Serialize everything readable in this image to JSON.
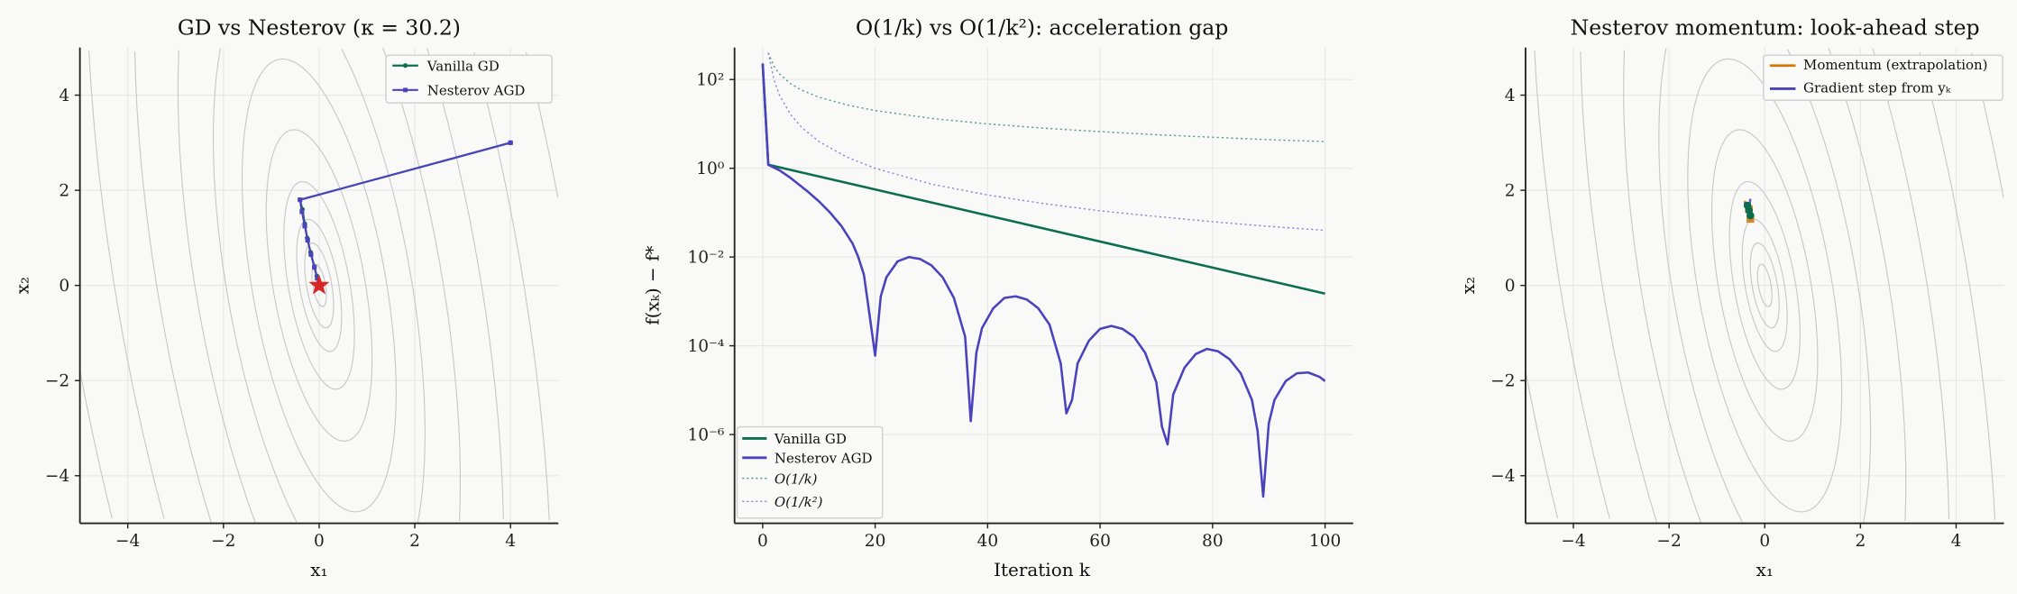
{
  "colors": {
    "gd": "#0b6e4f",
    "nesterov": "#4b43bd",
    "momentum": "#d97706",
    "star": "#d62728",
    "contour": "#c8c8c8"
  },
  "chart_data": [
    {
      "type": "line",
      "title": "GD vs Nesterov (κ = 30.2)",
      "xlabel": "x₁",
      "ylabel": "x₂",
      "xlim": [
        -5,
        5
      ],
      "ylim": [
        -5,
        5
      ],
      "xticks": [
        "−4",
        "−2",
        "0",
        "2",
        "4"
      ],
      "xtick_values": [
        -4,
        -2,
        0,
        2,
        4
      ],
      "yticks": [
        "−4",
        "−2",
        "0",
        "2",
        "4"
      ],
      "ytick_values": [
        -4,
        -2,
        0,
        2,
        4
      ],
      "grid": true,
      "legend": "top-right",
      "condition_number": 30.2,
      "series": [
        {
          "name": "Vanilla GD",
          "color": "#0b6e4f",
          "marker": "circle",
          "points": [
            [
              4,
              3
            ],
            [
              -0.4,
              1.8
            ],
            [
              -0.35,
              1.6
            ],
            [
              -0.3,
              1.3
            ],
            [
              -0.25,
              1.0
            ],
            [
              -0.18,
              0.7
            ],
            [
              -0.1,
              0.4
            ],
            [
              -0.05,
              0.2
            ],
            [
              0,
              0
            ]
          ]
        },
        {
          "name": "Nesterov AGD",
          "color": "#4b43bd",
          "marker": "square",
          "points": [
            [
              4,
              3
            ],
            [
              -0.4,
              1.8
            ],
            [
              -0.36,
              1.55
            ],
            [
              -0.3,
              1.25
            ],
            [
              -0.24,
              0.95
            ],
            [
              -0.17,
              0.65
            ],
            [
              -0.1,
              0.38
            ],
            [
              -0.04,
              0.15
            ],
            [
              0.02,
              -0.05
            ],
            [
              0,
              0
            ]
          ]
        }
      ],
      "optimum": [
        0,
        0
      ]
    },
    {
      "type": "line",
      "title": "O(1/k) vs O(1/k²): acceleration gap",
      "xlabel": "Iteration k",
      "ylabel": "f(xₖ) − f*",
      "xlim": [
        -5,
        105
      ],
      "ylim_log10": [
        -8,
        2.72
      ],
      "yscale": "log",
      "xticks": [
        "0",
        "20",
        "40",
        "60",
        "80",
        "100"
      ],
      "xtick_values": [
        0,
        20,
        40,
        60,
        80,
        100
      ],
      "yticks": [
        "10²",
        "10⁰",
        "10⁻²",
        "10⁻⁴",
        "10⁻⁶"
      ],
      "ytick_values": [
        2,
        0,
        -2,
        -4,
        -6
      ],
      "grid": true,
      "legend": "bottom-left",
      "series": [
        {
          "name": "Vanilla GD",
          "color": "#0b6e4f",
          "style": "solid",
          "points": [
            [
              0,
              230
            ],
            [
              1,
              1.2
            ],
            [
              100,
              0.0015
            ]
          ]
        },
        {
          "name": "Nesterov AGD",
          "color": "#4b43bd",
          "style": "solid",
          "points": [
            [
              0,
              230
            ],
            [
              1,
              1.2
            ],
            [
              3,
              0.9
            ],
            [
              5,
              0.6
            ],
            [
              8,
              0.3
            ],
            [
              10,
              0.18
            ],
            [
              12,
              0.1
            ],
            [
              14,
              0.05
            ],
            [
              16,
              0.02
            ],
            [
              17,
              0.01
            ],
            [
              18,
              0.004
            ],
            [
              19,
              0.0005
            ],
            [
              20,
              6e-05
            ],
            [
              21,
              0.0013
            ],
            [
              22,
              0.0035
            ],
            [
              24,
              0.008
            ],
            [
              26,
              0.01
            ],
            [
              28,
              0.009
            ],
            [
              30,
              0.0065
            ],
            [
              32,
              0.0035
            ],
            [
              34,
              0.0012
            ],
            [
              36,
              0.00016
            ],
            [
              37,
              2e-06
            ],
            [
              38,
              7e-05
            ],
            [
              39,
              0.00025
            ],
            [
              41,
              0.0007
            ],
            [
              43,
              0.0012
            ],
            [
              45,
              0.0013
            ],
            [
              47,
              0.0011
            ],
            [
              49,
              0.0007
            ],
            [
              51,
              0.0003
            ],
            [
              53,
              4e-05
            ],
            [
              54,
              3e-06
            ],
            [
              55,
              6e-06
            ],
            [
              56,
              4e-05
            ],
            [
              58,
              0.00013
            ],
            [
              60,
              0.00024
            ],
            [
              62,
              0.00028
            ],
            [
              64,
              0.00024
            ],
            [
              66,
              0.00016
            ],
            [
              68,
              7e-05
            ],
            [
              70,
              1.5e-05
            ],
            [
              71,
              1.5e-06
            ],
            [
              72,
              6e-07
            ],
            [
              73,
              8e-06
            ],
            [
              75,
              3.2e-05
            ],
            [
              77,
              6.5e-05
            ],
            [
              79,
              8.5e-05
            ],
            [
              81,
              7.5e-05
            ],
            [
              83,
              5e-05
            ],
            [
              85,
              2.4e-05
            ],
            [
              87,
              6e-06
            ],
            [
              88,
              1.2e-06
            ],
            [
              89,
              4e-08
            ],
            [
              90,
              1.8e-06
            ],
            [
              91,
              6e-06
            ],
            [
              93,
              1.6e-05
            ],
            [
              95,
              2.4e-05
            ],
            [
              97,
              2.5e-05
            ],
            [
              99,
              2e-05
            ],
            [
              100,
              1.6e-05
            ]
          ]
        },
        {
          "name": "O(1/k)",
          "color": "#5a9e7a",
          "style": "dotted",
          "points": [
            [
              1,
              400
            ],
            [
              2,
              200
            ],
            [
              3,
              133
            ],
            [
              5,
              80
            ],
            [
              7,
              57
            ],
            [
              10,
              40
            ],
            [
              15,
              26.7
            ],
            [
              20,
              20
            ],
            [
              30,
              13.3
            ],
            [
              40,
              10
            ],
            [
              50,
              8
            ],
            [
              60,
              6.7
            ],
            [
              70,
              5.7
            ],
            [
              80,
              5
            ],
            [
              90,
              4.4
            ],
            [
              100,
              4
            ]
          ]
        },
        {
          "name": "O(1/k²)",
          "color": "#8a84dc",
          "style": "dotted",
          "points": [
            [
              1,
              400
            ],
            [
              2,
              100
            ],
            [
              3,
              44
            ],
            [
              5,
              16
            ],
            [
              7,
              8.2
            ],
            [
              10,
              4
            ],
            [
              15,
              1.78
            ],
            [
              20,
              1
            ],
            [
              30,
              0.44
            ],
            [
              40,
              0.25
            ],
            [
              50,
              0.16
            ],
            [
              60,
              0.11
            ],
            [
              70,
              0.082
            ],
            [
              80,
              0.0625
            ],
            [
              90,
              0.049
            ],
            [
              100,
              0.04
            ]
          ]
        }
      ]
    },
    {
      "type": "scatter",
      "title": "Nesterov momentum: look-ahead step",
      "xlabel": "x₁",
      "ylabel": "x₂",
      "xlim": [
        -5,
        5
      ],
      "ylim": [
        -5,
        5
      ],
      "xticks": [
        "−4",
        "−2",
        "0",
        "2",
        "4"
      ],
      "xtick_values": [
        -4,
        -2,
        0,
        2,
        4
      ],
      "yticks": [
        "−4",
        "−2",
        "0",
        "2",
        "4"
      ],
      "ytick_values": [
        -4,
        -2,
        0,
        2,
        4
      ],
      "grid": true,
      "legend": "top-right",
      "series": [
        {
          "name": "Momentum (extrapolation)",
          "color": "#d97706",
          "segments": [
            [
              [
                -0.42,
                1.78
              ],
              [
                -0.36,
                1.62
              ]
            ],
            [
              [
                -0.33,
                1.6
              ],
              [
                -0.3,
                1.42
              ]
            ]
          ],
          "points": [
            [
              -0.33,
              1.6
            ],
            [
              -0.3,
              1.4
            ]
          ]
        },
        {
          "name": "Gradient step from yₖ",
          "color": "#4b43bd",
          "segments": [
            [
              [
                -0.3,
                1.82
              ],
              [
                -0.33,
                1.62
              ]
            ],
            [
              [
                -0.42,
                1.75
              ],
              [
                -0.36,
                1.6
              ]
            ]
          ]
        },
        {
          "name": "",
          "color": "#0b6e4f",
          "points": [
            [
              -0.36,
              1.68
            ],
            [
              -0.33,
              1.58
            ],
            [
              -0.3,
              1.47
            ]
          ]
        }
      ]
    }
  ]
}
